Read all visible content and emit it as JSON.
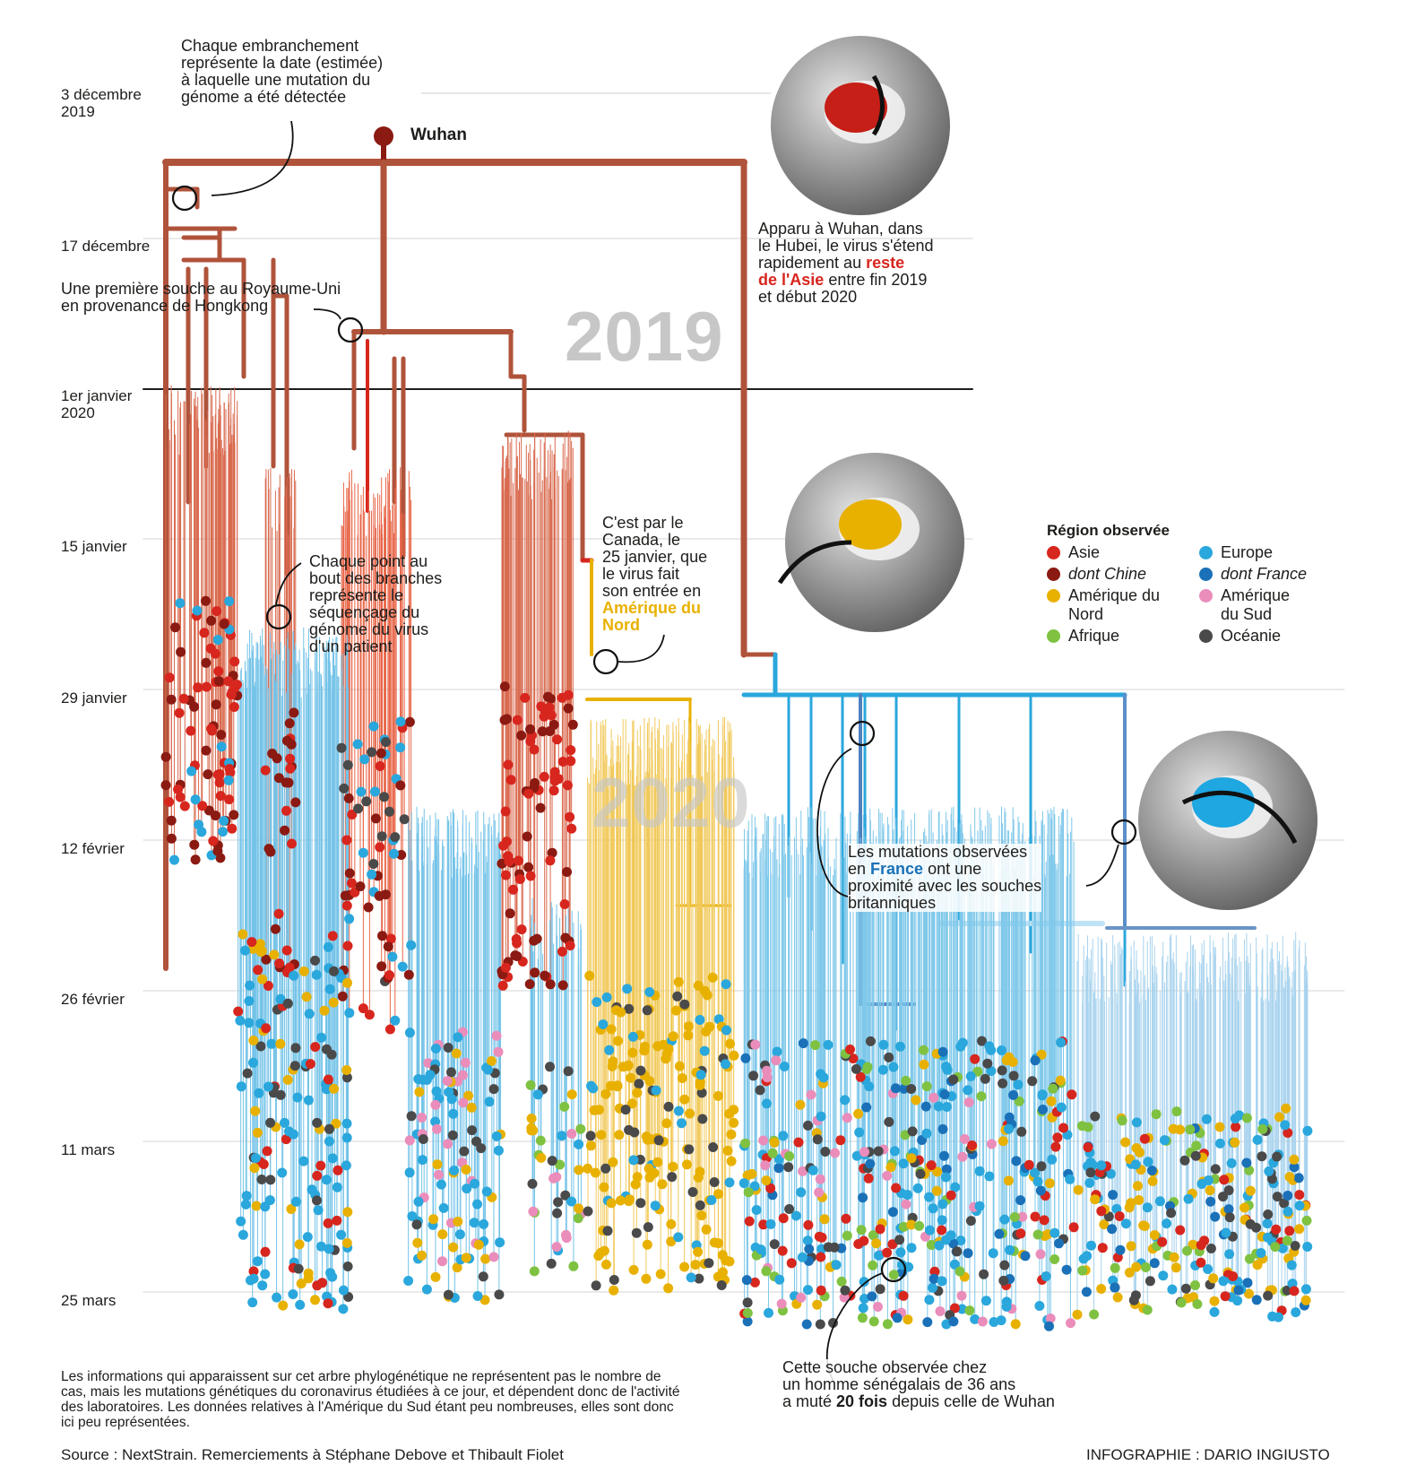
{
  "timeline": {
    "dates": [
      {
        "label": "3 décembre",
        "label2": "2019"
      },
      {
        "label": "17 décembre",
        "label2": ""
      },
      {
        "label": "1er janvier",
        "label2": "2020"
      },
      {
        "label": "15 janvier",
        "label2": ""
      },
      {
        "label": "29 janvier",
        "label2": ""
      },
      {
        "label": "12 février",
        "label2": ""
      },
      {
        "label": "26 février",
        "label2": ""
      },
      {
        "label": "11 mars",
        "label2": ""
      },
      {
        "label": "25 mars",
        "label2": ""
      }
    ],
    "year_2019": "2019",
    "year_2020": "2020"
  },
  "root_label": "Wuhan",
  "annotations": {
    "branch_date": [
      "Chaque embranchement",
      "représente la date (estimée)",
      "à laquelle une mutation du",
      "génome a été détectée"
    ],
    "uk_strain": [
      "Une première souche au Royaume-Uni",
      "en provenance de Hongkong"
    ],
    "asia": {
      "lines": [
        "Apparu à Wuhan, dans",
        "le Hubei, le virus s'étend",
        "rapidement au "
      ],
      "highlight1": "reste",
      "highlight2": "de l'Asie",
      "rest": " entre fin 2019",
      "last": "et début 2020"
    },
    "point": [
      "Chaque point au",
      "bout des branches",
      "représente le",
      "séquençage du",
      "génome du virus",
      "d'un patient"
    ],
    "canada": {
      "lines": [
        "C'est par le",
        "Canada, le",
        "25 janvier, que",
        "le virus fait",
        "son entrée en"
      ],
      "highlight": [
        "Amérique du",
        "Nord"
      ]
    },
    "france": {
      "l1": "Les mutations observées",
      "pre": "en ",
      "highlight": "France",
      "post": " ont une",
      "l3": "proximité avec les souches",
      "l4": "britanniques"
    },
    "senegal": {
      "l1": "Cette souche observée chez",
      "l2": "un homme sénégalais de 36 ans",
      "pre": "a muté ",
      "highlight": "20 fois",
      "post": " depuis celle de Wuhan"
    }
  },
  "legend": {
    "title": "Région observée",
    "items": [
      {
        "label": "Asie",
        "color": "#d7261e",
        "italic": false
      },
      {
        "label": "Europe",
        "color": "#2aa7dc",
        "italic": false
      },
      {
        "label": "dont Chine",
        "color": "#8b1a12",
        "italic": true
      },
      {
        "label": "dont France",
        "color": "#1a71b8",
        "italic": true
      },
      {
        "label": "Amérique du Nord",
        "color": "#e8b100",
        "italic": false
      },
      {
        "label": "Amérique du Sud",
        "color": "#ea8dbb",
        "italic": false
      },
      {
        "label": "Afrique",
        "color": "#7fc241",
        "italic": false
      },
      {
        "label": "Océanie",
        "color": "#4a4a4a",
        "italic": false
      }
    ]
  },
  "footer": {
    "note": "Les informations qui apparaissent sur cet arbre phylogénétique ne représentent pas le nombre de cas, mais les mutations génétiques du coronavirus étudiées à ce jour, et dépendent donc de l'activité des laboratoires. Les données relatives à l'Amérique du Sud étant peu nombreuses, elles sont donc ici peu représentées.",
    "source": "Source : NextStrain. Remerciements à Stéphane Debove et Thibault Fiolet",
    "credit": "INFOGRAPHIE : DARIO INGIUSTO"
  },
  "colors": {
    "trunk": "#b0533b",
    "asia": "#d7261e",
    "china": "#8b1a12",
    "europe": "#2aa7dc",
    "france": "#1a71b8",
    "namerica": "#e8b100",
    "samerica": "#ea8dbb",
    "africa": "#7fc241",
    "oceania": "#4a4a4a"
  }
}
